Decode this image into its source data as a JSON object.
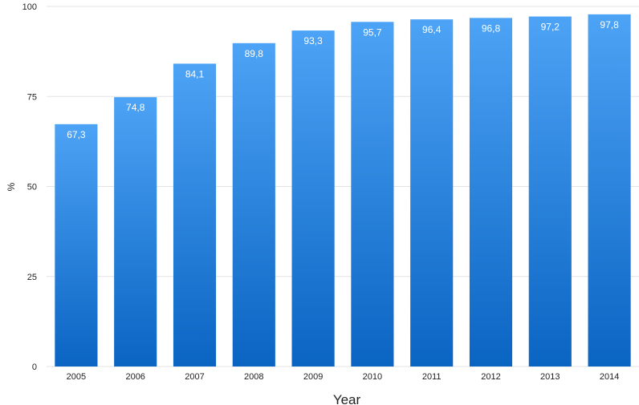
{
  "chart_data": {
    "type": "bar",
    "categories": [
      "2005",
      "2006",
      "2007",
      "2008",
      "2009",
      "2010",
      "2011",
      "2012",
      "2013",
      "2014"
    ],
    "values": [
      67.3,
      74.8,
      84.1,
      89.8,
      93.3,
      95.7,
      96.4,
      96.8,
      97.2,
      97.8
    ],
    "data_labels": [
      "67,3",
      "74,8",
      "84,1",
      "89,8",
      "93,3",
      "95,7",
      "96,4",
      "96,8",
      "97,2",
      "97,8"
    ],
    "title": "",
    "xlabel": "Year",
    "ylabel": "%",
    "ylim": [
      0,
      100
    ],
    "yticks": [
      0,
      25,
      50,
      75,
      100
    ],
    "grid": true,
    "legend": "none",
    "colors": {
      "bar_top": "#4da3f5",
      "bar_bottom": "#0a64c2",
      "grid": "#e3e3e3",
      "label": "#ffffff"
    }
  }
}
